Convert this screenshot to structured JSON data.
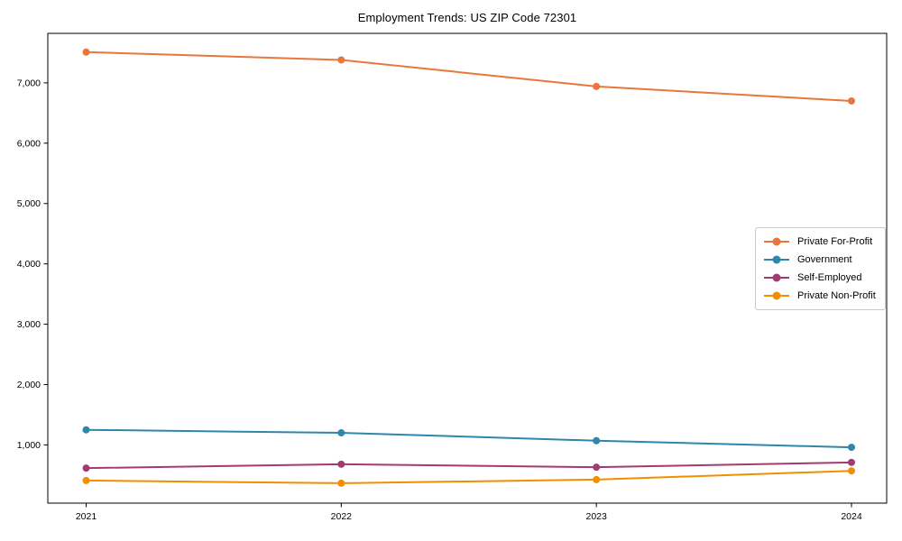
{
  "chart_data": {
    "type": "line",
    "title": "Employment Trends: US ZIP Code 72301",
    "x": [
      "2021",
      "2022",
      "2023",
      "2024"
    ],
    "series": [
      {
        "name": "Private For-Profit",
        "color": "#E8773D",
        "values": [
          7510,
          7380,
          6940,
          6700
        ]
      },
      {
        "name": "Government",
        "color": "#2E86AB",
        "values": [
          1250,
          1200,
          1070,
          960
        ]
      },
      {
        "name": "Self-Employed",
        "color": "#A23B72",
        "values": [
          615,
          680,
          630,
          710
        ]
      },
      {
        "name": "Private Non-Profit",
        "color": "#F18F01",
        "values": [
          410,
          365,
          425,
          570
        ]
      }
    ],
    "yticks": [
      1000,
      2000,
      3000,
      4000,
      5000,
      6000,
      7000
    ],
    "ytick_labels": [
      "1,000",
      "2,000",
      "3,000",
      "4,000",
      "5,000",
      "6,000",
      "7,000"
    ],
    "xtick_labels": [
      "2021",
      "2022",
      "2023",
      "2024"
    ],
    "ylim": [
      35,
      7820
    ],
    "xlabel": "",
    "ylabel": "",
    "grid": false,
    "legend_position": "center right",
    "marker": "circle",
    "axis_color": "#000000",
    "background_color": "#ffffff"
  }
}
